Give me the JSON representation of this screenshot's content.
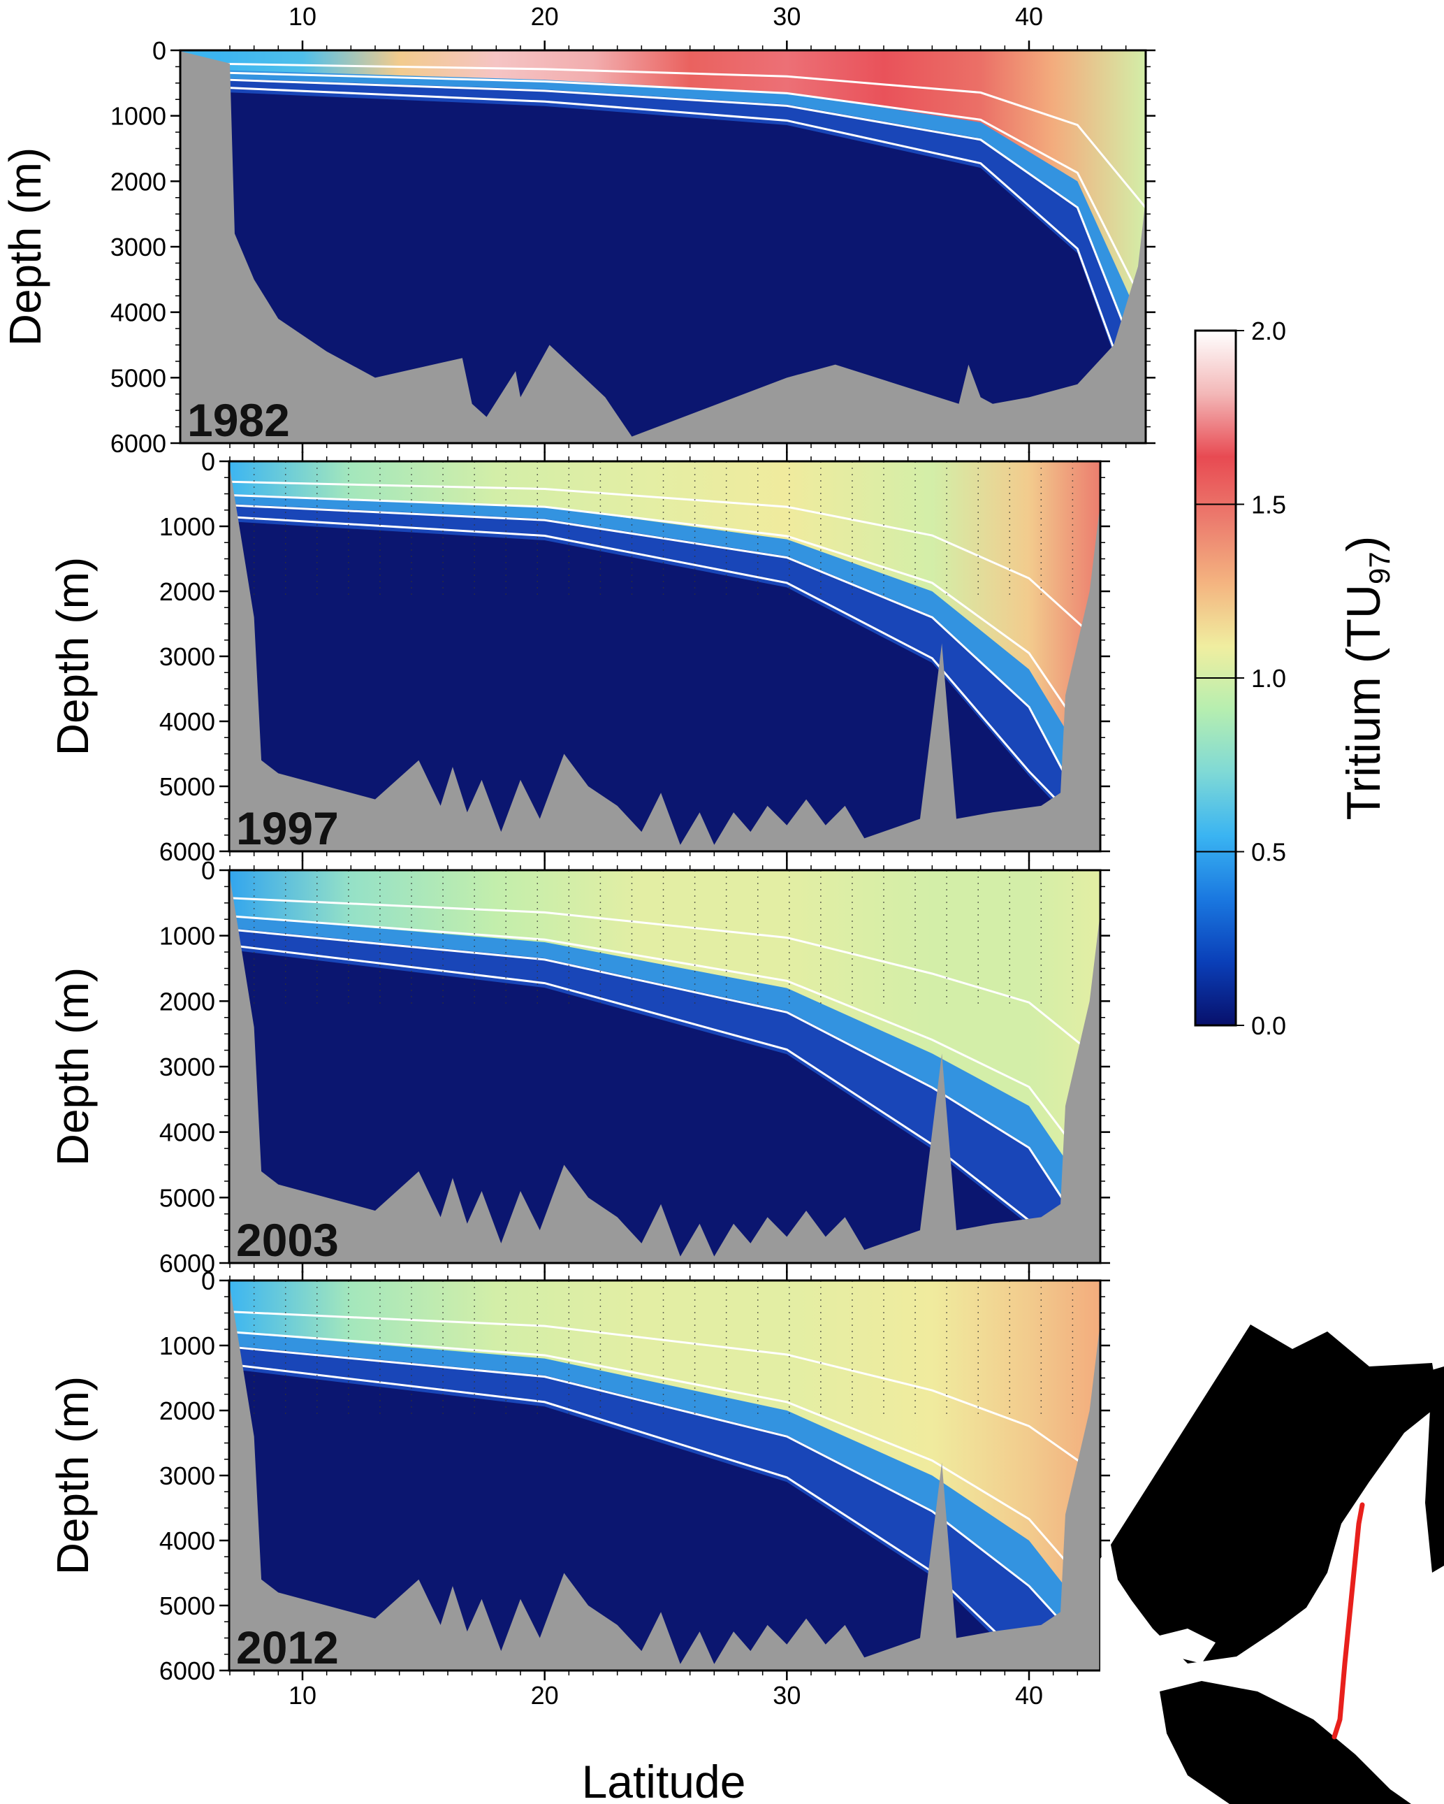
{
  "chart_data": {
    "type": "heatmap",
    "description_units": "Tritium concentration sections vs latitude and depth",
    "xlabel": "Latitude",
    "ylabel": "Depth (m)",
    "x_ticks": [
      10,
      20,
      30,
      40
    ],
    "y_ticks": [
      0,
      1000,
      2000,
      3000,
      4000,
      5000,
      6000
    ],
    "xlim": [
      6.5,
      45
    ],
    "ylim": [
      0,
      6000
    ],
    "colorbar": {
      "label_main": "Tritium (TU",
      "label_sub": "97",
      "label_close": ")",
      "ticks": [
        "0.0",
        "0.5",
        "1.0",
        "1.5",
        "2.0"
      ],
      "range": [
        0,
        2
      ],
      "colormap": [
        "#08106b",
        "#0a3fb8",
        "#1a78e0",
        "#3ab4f2",
        "#7fd9d6",
        "#b6eeb0",
        "#f0eea0",
        "#f4b480",
        "#ec7c6e",
        "#e84a52",
        "#f3b8b8",
        "#ffffff"
      ]
    },
    "panels": [
      {
        "year": "1982",
        "xlim": [
          6.5,
          45
        ],
        "bathymetry": [
          [
            6.5,
            0
          ],
          [
            7,
            200
          ],
          [
            7.2,
            2800
          ],
          [
            8,
            3500
          ],
          [
            9,
            4100
          ],
          [
            11,
            4600
          ],
          [
            13,
            5000
          ],
          [
            16.6,
            4700
          ],
          [
            17,
            5400
          ],
          [
            17.6,
            5600
          ],
          [
            18.8,
            4900
          ],
          [
            19,
            5300
          ],
          [
            20.2,
            4500
          ],
          [
            22.5,
            5300
          ],
          [
            23.6,
            5900
          ],
          [
            30,
            5000
          ],
          [
            32,
            4800
          ],
          [
            37.1,
            5400
          ],
          [
            37.5,
            4800
          ],
          [
            38,
            5300
          ],
          [
            38.5,
            5400
          ],
          [
            40,
            5300
          ],
          [
            42,
            5100
          ],
          [
            43.5,
            4500
          ],
          [
            44.5,
            3300
          ],
          [
            45,
            1800
          ],
          [
            45,
            6000
          ],
          [
            6.5,
            6000
          ]
        ],
        "surface": [
          {
            "lat": 6.5,
            "value": 0.55
          },
          {
            "lat": 10,
            "value": 0.6
          },
          {
            "lat": 14,
            "value": 1.2
          },
          {
            "lat": 18,
            "value": 1.85
          },
          {
            "lat": 22,
            "value": 1.8
          },
          {
            "lat": 26,
            "value": 1.55
          },
          {
            "lat": 30,
            "value": 1.7
          },
          {
            "lat": 34,
            "value": 1.65
          },
          {
            "lat": 38,
            "value": 1.5
          },
          {
            "lat": 41,
            "value": 1.3
          },
          {
            "lat": 45,
            "value": 1.0
          }
        ],
        "mixed_depth": [
          {
            "lat": 6.5,
            "depth": 300
          },
          {
            "lat": 20,
            "depth": 450
          },
          {
            "lat": 30,
            "depth": 650
          },
          {
            "lat": 38,
            "depth": 1100
          },
          {
            "lat": 42,
            "depth": 2000
          },
          {
            "lat": 45,
            "depth": 4300
          }
        ]
      },
      {
        "year": "1997",
        "xlim": [
          6.5,
          43.2
        ],
        "bathymetry": [
          [
            6.5,
            0
          ],
          [
            7,
            100
          ],
          [
            8,
            2400
          ],
          [
            8.3,
            4600
          ],
          [
            9,
            4800
          ],
          [
            13,
            5200
          ],
          [
            14.8,
            4600
          ],
          [
            15.7,
            5300
          ],
          [
            16.2,
            4700
          ],
          [
            16.8,
            5400
          ],
          [
            17.4,
            4900
          ],
          [
            18.2,
            5700
          ],
          [
            19,
            4900
          ],
          [
            19.8,
            5500
          ],
          [
            20.8,
            4500
          ],
          [
            21.8,
            5000
          ],
          [
            23,
            5300
          ],
          [
            24,
            5700
          ],
          [
            24.8,
            5100
          ],
          [
            25.6,
            5900
          ],
          [
            26.4,
            5400
          ],
          [
            27,
            5900
          ],
          [
            27.8,
            5400
          ],
          [
            28.5,
            5700
          ],
          [
            29.2,
            5300
          ],
          [
            30,
            5600
          ],
          [
            30.8,
            5200
          ],
          [
            31.6,
            5600
          ],
          [
            32.4,
            5300
          ],
          [
            33.2,
            5800
          ],
          [
            35.5,
            5500
          ],
          [
            36.4,
            2800
          ],
          [
            37,
            5500
          ],
          [
            38.5,
            5400
          ],
          [
            40.5,
            5300
          ],
          [
            41.3,
            5100
          ],
          [
            41.5,
            3600
          ],
          [
            42.5,
            2000
          ],
          [
            43.2,
            200
          ],
          [
            43.2,
            6000
          ],
          [
            6.5,
            6000
          ]
        ],
        "surface": [
          {
            "lat": 6.5,
            "value": 0.55
          },
          {
            "lat": 12,
            "value": 0.85
          },
          {
            "lat": 18,
            "value": 1.0
          },
          {
            "lat": 24,
            "value": 1.05
          },
          {
            "lat": 30,
            "value": 1.1
          },
          {
            "lat": 36,
            "value": 1.0
          },
          {
            "lat": 40,
            "value": 1.2
          },
          {
            "lat": 43.2,
            "value": 1.45
          }
        ],
        "mixed_depth": [
          {
            "lat": 6.5,
            "depth": 500
          },
          {
            "lat": 20,
            "depth": 700
          },
          {
            "lat": 30,
            "depth": 1200
          },
          {
            "lat": 36,
            "depth": 2000
          },
          {
            "lat": 40,
            "depth": 3200
          },
          {
            "lat": 43.2,
            "depth": 5000
          }
        ]
      },
      {
        "year": "2003",
        "xlim": [
          6.5,
          43.2
        ],
        "bathymetry": [
          [
            6.5,
            0
          ],
          [
            7,
            100
          ],
          [
            8,
            2400
          ],
          [
            8.3,
            4600
          ],
          [
            9,
            4800
          ],
          [
            13,
            5200
          ],
          [
            14.8,
            4600
          ],
          [
            15.7,
            5300
          ],
          [
            16.2,
            4700
          ],
          [
            16.8,
            5400
          ],
          [
            17.4,
            4900
          ],
          [
            18.2,
            5700
          ],
          [
            19,
            4900
          ],
          [
            19.8,
            5500
          ],
          [
            20.8,
            4500
          ],
          [
            21.8,
            5000
          ],
          [
            23,
            5300
          ],
          [
            24,
            5700
          ],
          [
            24.8,
            5100
          ],
          [
            25.6,
            5900
          ],
          [
            26.4,
            5400
          ],
          [
            27,
            5900
          ],
          [
            27.8,
            5400
          ],
          [
            28.5,
            5700
          ],
          [
            29.2,
            5300
          ],
          [
            30,
            5600
          ],
          [
            30.8,
            5200
          ],
          [
            31.6,
            5600
          ],
          [
            32.4,
            5300
          ],
          [
            33.2,
            5800
          ],
          [
            35.5,
            5500
          ],
          [
            36.4,
            2800
          ],
          [
            37,
            5500
          ],
          [
            38.5,
            5400
          ],
          [
            40.5,
            5300
          ],
          [
            41.3,
            5100
          ],
          [
            41.5,
            3600
          ],
          [
            42.5,
            2000
          ],
          [
            43.2,
            200
          ],
          [
            43.2,
            6000
          ],
          [
            6.5,
            6000
          ]
        ],
        "surface": [
          {
            "lat": 6.5,
            "value": 0.5
          },
          {
            "lat": 12,
            "value": 0.8
          },
          {
            "lat": 18,
            "value": 0.95
          },
          {
            "lat": 24,
            "value": 1.05
          },
          {
            "lat": 30,
            "value": 1.05
          },
          {
            "lat": 36,
            "value": 1.0
          },
          {
            "lat": 40,
            "value": 1.0
          },
          {
            "lat": 43.2,
            "value": 1.05
          }
        ],
        "mixed_depth": [
          {
            "lat": 6.5,
            "depth": 700
          },
          {
            "lat": 20,
            "depth": 1100
          },
          {
            "lat": 30,
            "depth": 1800
          },
          {
            "lat": 36,
            "depth": 2800
          },
          {
            "lat": 40,
            "depth": 3600
          },
          {
            "lat": 43.2,
            "depth": 5200
          }
        ]
      },
      {
        "year": "2012",
        "xlim": [
          6.5,
          43.2
        ],
        "bathymetry": [
          [
            6.5,
            0
          ],
          [
            7,
            100
          ],
          [
            8,
            2400
          ],
          [
            8.3,
            4600
          ],
          [
            9,
            4800
          ],
          [
            13,
            5200
          ],
          [
            14.8,
            4600
          ],
          [
            15.7,
            5300
          ],
          [
            16.2,
            4700
          ],
          [
            16.8,
            5400
          ],
          [
            17.4,
            4900
          ],
          [
            18.2,
            5700
          ],
          [
            19,
            4900
          ],
          [
            19.8,
            5500
          ],
          [
            20.8,
            4500
          ],
          [
            21.8,
            5000
          ],
          [
            23,
            5300
          ],
          [
            24,
            5700
          ],
          [
            24.8,
            5100
          ],
          [
            25.6,
            5900
          ],
          [
            26.4,
            5400
          ],
          [
            27,
            5900
          ],
          [
            27.8,
            5400
          ],
          [
            28.5,
            5700
          ],
          [
            29.2,
            5300
          ],
          [
            30,
            5600
          ],
          [
            30.8,
            5200
          ],
          [
            31.6,
            5600
          ],
          [
            32.4,
            5300
          ],
          [
            33.2,
            5800
          ],
          [
            35.5,
            5500
          ],
          [
            36.4,
            2800
          ],
          [
            37,
            5500
          ],
          [
            38.5,
            5400
          ],
          [
            40.5,
            5300
          ],
          [
            41.3,
            5100
          ],
          [
            41.5,
            3600
          ],
          [
            42.5,
            2000
          ],
          [
            43.2,
            200
          ],
          [
            43.2,
            6000
          ],
          [
            6.5,
            6000
          ]
        ],
        "surface": [
          {
            "lat": 6.5,
            "value": 0.55
          },
          {
            "lat": 12,
            "value": 0.85
          },
          {
            "lat": 18,
            "value": 1.0
          },
          {
            "lat": 24,
            "value": 1.05
          },
          {
            "lat": 30,
            "value": 1.05
          },
          {
            "lat": 36,
            "value": 1.1
          },
          {
            "lat": 40,
            "value": 1.2
          },
          {
            "lat": 43.2,
            "value": 1.3
          }
        ],
        "mixed_depth": [
          {
            "lat": 6.5,
            "depth": 800
          },
          {
            "lat": 20,
            "depth": 1200
          },
          {
            "lat": 30,
            "depth": 2000
          },
          {
            "lat": 36,
            "depth": 3000
          },
          {
            "lat": 40,
            "depth": 4000
          },
          {
            "lat": 43.2,
            "depth": 5400
          }
        ]
      }
    ],
    "inset_map": {
      "section_color": "#e8201c"
    }
  }
}
